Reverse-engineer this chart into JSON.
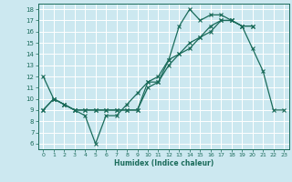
{
  "xlabel": "Humidex (Indice chaleur)",
  "bg_color": "#cce8f0",
  "line_color": "#1a6b5a",
  "grid_color": "#ffffff",
  "xlim": [
    -0.5,
    23.5
  ],
  "ylim": [
    5.5,
    18.5
  ],
  "xticks": [
    0,
    1,
    2,
    3,
    4,
    5,
    6,
    7,
    8,
    9,
    10,
    11,
    12,
    13,
    14,
    15,
    16,
    17,
    18,
    19,
    20,
    21,
    22,
    23
  ],
  "yticks": [
    6,
    7,
    8,
    9,
    10,
    11,
    12,
    13,
    14,
    15,
    16,
    17,
    18
  ],
  "line1_x": [
    0,
    1,
    2,
    3,
    4,
    5,
    6,
    7,
    8,
    9,
    10,
    11,
    12,
    13,
    14,
    15,
    16,
    17,
    18,
    19,
    20,
    21,
    22,
    23
  ],
  "line1_y": [
    12,
    10,
    9.5,
    9,
    8.5,
    6,
    8.5,
    8.5,
    9.5,
    10.5,
    11.5,
    11.5,
    13.5,
    16.5,
    18,
    17,
    17.5,
    17.5,
    17,
    16.5,
    14.5,
    12.5,
    9,
    9
  ],
  "line2_x": [
    0,
    1,
    2,
    3,
    4,
    5,
    6,
    7,
    8,
    9,
    10,
    11,
    12,
    13,
    14,
    15,
    16,
    17,
    18,
    19,
    20
  ],
  "line2_y": [
    9,
    10,
    9.5,
    9,
    9,
    9,
    9,
    9,
    9,
    9,
    11,
    11.5,
    13,
    14,
    14.5,
    15.5,
    16,
    17,
    17,
    16.5,
    16.5
  ],
  "line3_x": [
    0,
    1,
    2,
    3,
    4,
    5,
    6,
    7,
    8,
    9,
    10,
    11,
    12,
    13,
    14,
    15,
    16,
    17,
    18,
    19,
    20
  ],
  "line3_y": [
    9,
    10,
    9.5,
    9,
    9,
    9,
    9,
    9,
    9,
    9,
    11.5,
    12,
    13.5,
    14,
    15,
    15.5,
    16.5,
    17,
    17,
    16.5,
    16.5
  ]
}
